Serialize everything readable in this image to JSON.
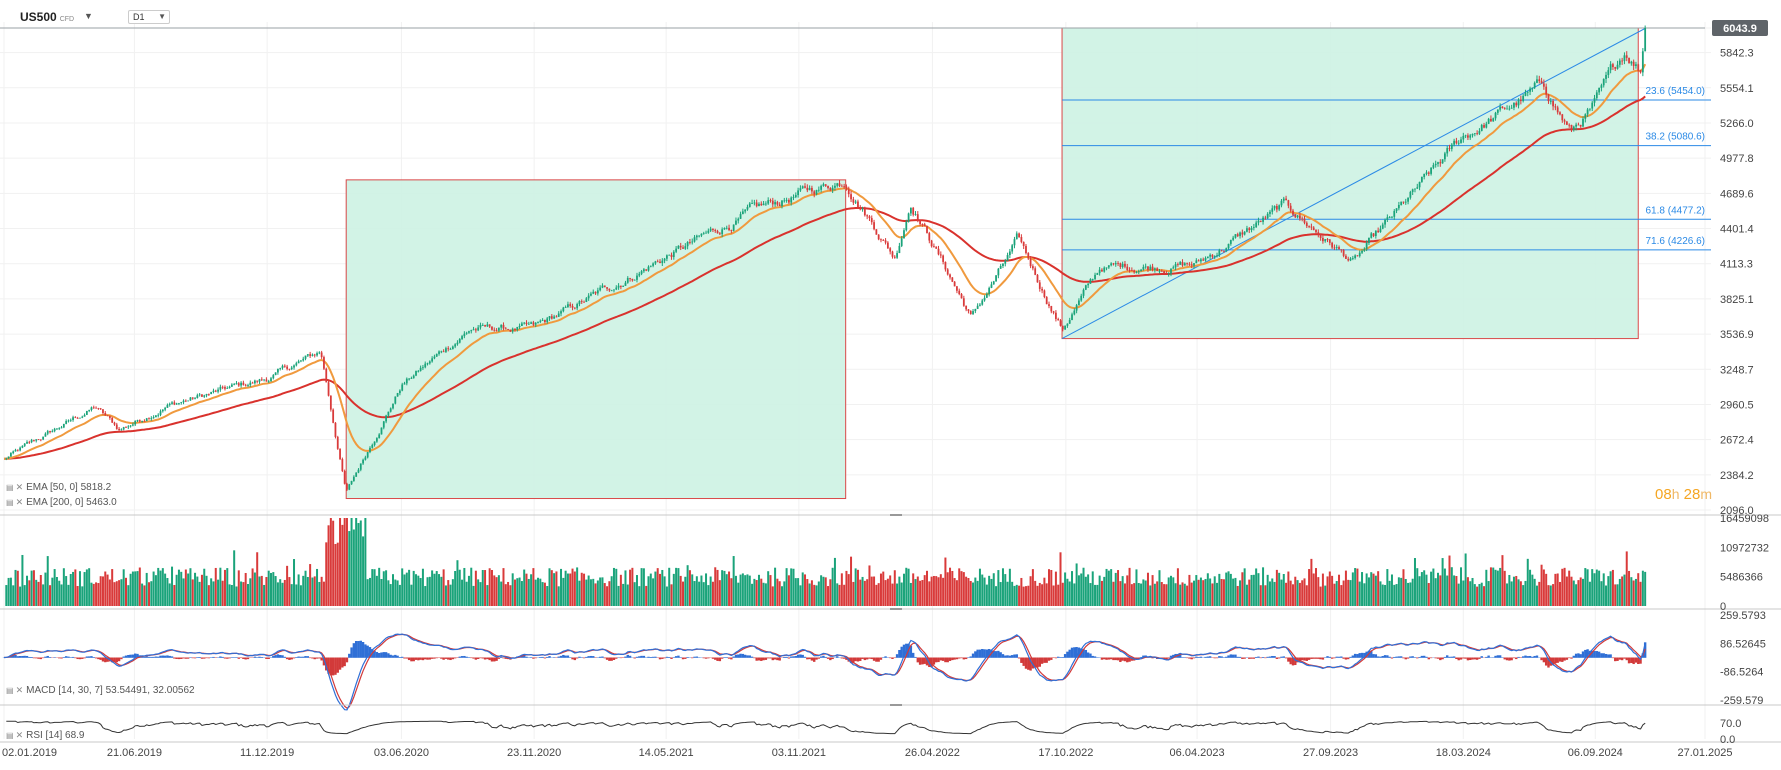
{
  "header": {
    "symbol": "US500",
    "symbol_type": "CFD",
    "timeframe": "D1"
  },
  "price_label": "6043.9",
  "countdown": {
    "hours": "08",
    "hours_unit": "h",
    "minutes": "28",
    "minutes_unit": "m"
  },
  "indicators": {
    "ema50": "EMA [50, 0] 5818.2",
    "ema200": "EMA [200, 0] 5463.0",
    "macd": "MACD [14, 30, 7] 53.54491,  32.00562",
    "rsi": "RSI [14] 68.9"
  },
  "colors": {
    "up": "#1aa37a",
    "down": "#d93a3a",
    "ema50": "#f09a3e",
    "ema200": "#d9322d",
    "box_fill": "#cdf2e3",
    "box_stroke": "#d94848",
    "fib": "#2b8ae6",
    "price_label_bg": "#5f6469",
    "macd_blue": "#2f6fd6",
    "macd_red": "#d23a3a",
    "rsi": "#333333"
  },
  "chart_data": {
    "type": "line",
    "title": "US500",
    "x_axis_ticks": [
      "02.01.2019",
      "21.06.2019",
      "11.12.2019",
      "03.06.2020",
      "23.11.2020",
      "14.05.2021",
      "03.11.2021",
      "26.04.2022",
      "17.10.2022",
      "06.04.2023",
      "27.09.2023",
      "18.03.2024",
      "06.09.2024",
      "27.01.2025"
    ],
    "y_axis_ticks": [
      "6043.9",
      "5842.3",
      "5554.1",
      "5266.0",
      "4977.8",
      "4689.6",
      "4401.4",
      "4113.3",
      "3825.1",
      "3536.9",
      "3248.7",
      "2960.5",
      "2672.4",
      "2384.2",
      "2096.0"
    ],
    "ylim": [
      2096.0,
      6043.9
    ],
    "price_anchors": [
      {
        "date": "02.01.2019",
        "close": 2510
      },
      {
        "date": "01.05.2019",
        "close": 2940
      },
      {
        "date": "01.06.2019",
        "close": 2750
      },
      {
        "date": "01.08.2019",
        "close": 2950
      },
      {
        "date": "11.12.2019",
        "close": 3170
      },
      {
        "date": "19.02.2020",
        "close": 3390
      },
      {
        "date": "23.03.2020",
        "close": 2237
      },
      {
        "date": "03.06.2020",
        "close": 3120
      },
      {
        "date": "01.09.2020",
        "close": 3580
      },
      {
        "date": "23.11.2020",
        "close": 3580
      },
      {
        "date": "14.05.2021",
        "close": 4170
      },
      {
        "date": "02.09.2021",
        "close": 4530
      },
      {
        "date": "03.11.2021",
        "close": 4680
      },
      {
        "date": "03.01.2022",
        "close": 4800
      },
      {
        "date": "08.03.2022",
        "close": 4170
      },
      {
        "date": "29.03.2022",
        "close": 4630
      },
      {
        "date": "16.06.2022",
        "close": 3670
      },
      {
        "date": "16.08.2022",
        "close": 4300
      },
      {
        "date": "12.10.2022",
        "close": 3580
      },
      {
        "date": "01.12.2022",
        "close": 4080
      },
      {
        "date": "06.04.2023",
        "close": 4110
      },
      {
        "date": "31.07.2023",
        "close": 4590
      },
      {
        "date": "27.10.2023",
        "close": 4120
      },
      {
        "date": "18.03.2024",
        "close": 5150
      },
      {
        "date": "01.07.2024",
        "close": 5570
      },
      {
        "date": "05.08.2024",
        "close": 5190
      },
      {
        "date": "06.09.2024",
        "close": 5410
      },
      {
        "date": "15.10.2024",
        "close": 5860
      },
      {
        "date": "04.11.2024",
        "close": 5710
      },
      {
        "date": "11.11.2024",
        "close": 6043.9
      }
    ],
    "series": [
      {
        "name": "EMA [50, 0]",
        "last": 5818.2
      },
      {
        "name": "EMA [200, 0]",
        "last": 5463.0
      }
    ],
    "fibonacci": [
      {
        "label": "23.6 (5454.0)",
        "value": 5454.0
      },
      {
        "label": "38.2 (5080.6)",
        "value": 5080.6
      },
      {
        "label": "61.8 (4477.2)",
        "value": 4477.2
      },
      {
        "label": "71.6 (4226.6)",
        "value": 4226.6
      }
    ],
    "trendline": [
      {
        "date": "12.10.2022",
        "value": 3500
      },
      {
        "date": "11.11.2024",
        "value": 6043.9
      }
    ],
    "highlight_boxes": [
      {
        "from": "23.03.2020",
        "to": "03.01.2022",
        "low": 2190,
        "high": 4800
      },
      {
        "from": "12.10.2022",
        "to": "01.11.2024",
        "low": 3500,
        "high": 6043.9
      }
    ],
    "volume": {
      "y_axis_ticks": [
        "16459098",
        "10972732",
        "5486366",
        "0"
      ],
      "ylim": [
        0,
        16459098
      ]
    },
    "macd": {
      "y_axis_ticks": [
        "259.5793",
        "86.52645",
        "-86.5264",
        "-259.579"
      ],
      "ylim": [
        -259.579,
        259.5793
      ],
      "last": [
        53.54491,
        32.00562
      ]
    },
    "rsi": {
      "y_axis_ticks": [
        "70.0",
        "0.0"
      ],
      "ylim": [
        0,
        100
      ],
      "last": 68.9
    }
  }
}
